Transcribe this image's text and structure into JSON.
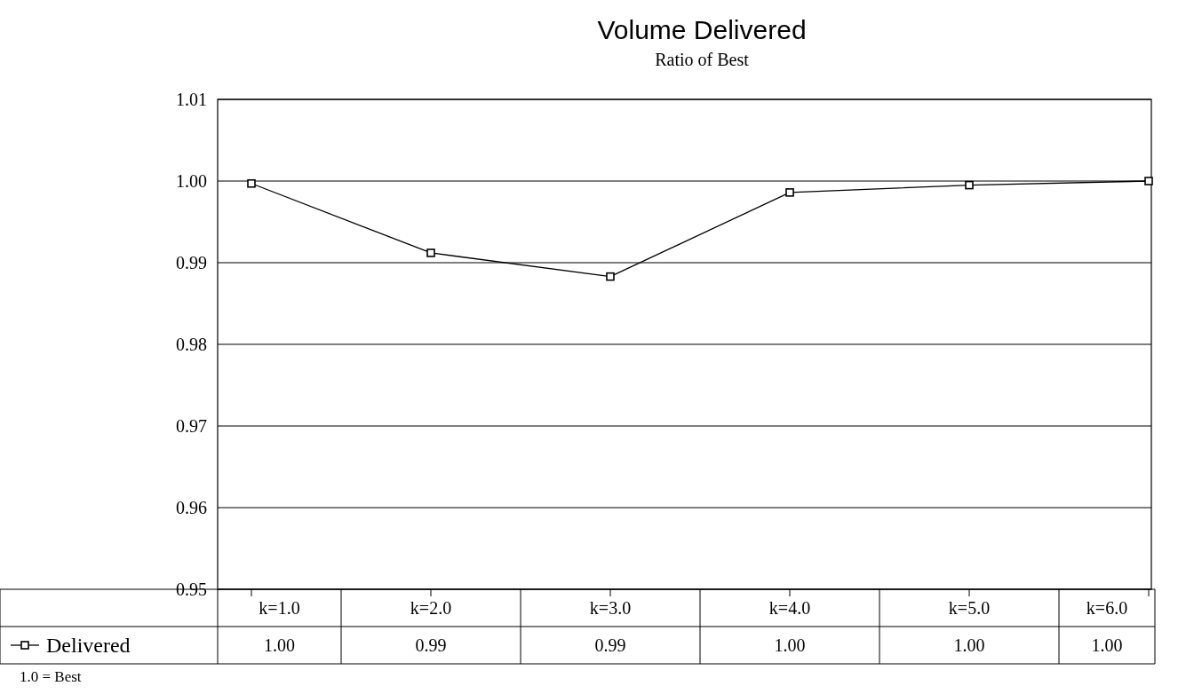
{
  "chart_data": {
    "type": "line",
    "title": "Volume Delivered",
    "subtitle": "Ratio of Best",
    "categories": [
      "k=1.0",
      "k=2.0",
      "k=3.0",
      "k=4.0",
      "k=5.0",
      "k=6.0"
    ],
    "series": [
      {
        "name": "Delivered",
        "color": "#000000",
        "values": [
          0.9997,
          0.9912,
          0.9883,
          0.9986,
          0.9995,
          1.0
        ],
        "value_labels": [
          "1.00",
          "0.99",
          "0.99",
          "1.00",
          "1.00",
          "1.00"
        ]
      }
    ],
    "ylim": [
      0.95,
      1.01
    ],
    "yticks": [
      {
        "value": 0.95,
        "label": "0.95"
      },
      {
        "value": 0.96,
        "label": "0.96"
      },
      {
        "value": 0.97,
        "label": "0.97"
      },
      {
        "value": 0.98,
        "label": "0.98"
      },
      {
        "value": 0.99,
        "label": "0.99"
      },
      {
        "value": 1.0,
        "label": "1.00"
      },
      {
        "value": 1.01,
        "label": "1.01"
      }
    ],
    "grid": "y",
    "marker": "square",
    "line_style": "solid",
    "legend": "bottom left",
    "annotations": [
      "1.0 = Best"
    ]
  }
}
